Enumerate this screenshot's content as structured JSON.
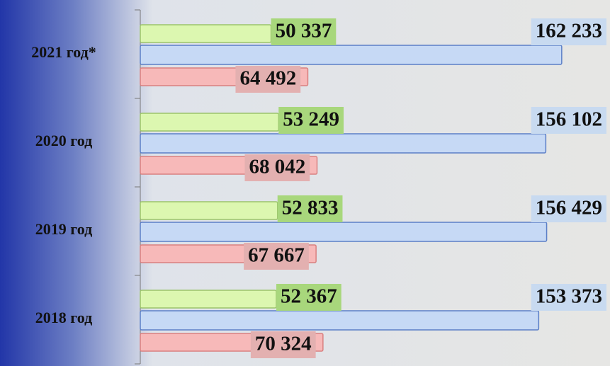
{
  "chart_data": {
    "type": "bar",
    "orientation": "horizontal",
    "categories": [
      "2021 год*",
      "2020 год",
      "2019 год",
      "2018 год"
    ],
    "xlim": [
      0,
      180000
    ],
    "series": [
      {
        "color": "#dcf7b0",
        "values": [
          50337,
          53249,
          52833,
          52367
        ],
        "value_labels": [
          "50 337",
          "53 249",
          "52 833",
          "52 367"
        ]
      },
      {
        "color": "#c6d9f5",
        "values": [
          162233,
          156102,
          156429,
          153373
        ],
        "value_labels": [
          "162 233",
          "156 102",
          "156 429",
          "153 373"
        ]
      },
      {
        "color": "#f7b9b9",
        "values": [
          64492,
          68042,
          67667,
          70324
        ],
        "value_labels": [
          "64 492",
          "68 042",
          "67 667",
          "70 324"
        ]
      }
    ]
  }
}
